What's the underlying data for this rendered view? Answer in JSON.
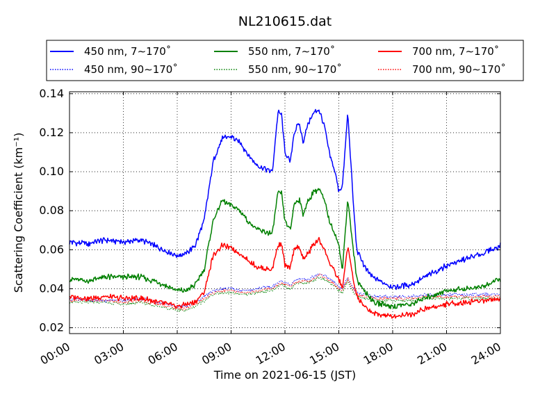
{
  "chart_data": {
    "type": "line",
    "title": "NL210615.dat",
    "xlabel": "Time on 2021-06-15 (JST)",
    "ylabel": "Scattering Coefficient (km⁻¹)",
    "xlim": [
      "00:00",
      "24:00"
    ],
    "ylim": [
      0.017,
      0.141
    ],
    "grid": true,
    "legend": "top, outside, 3 columns",
    "x_ticks": [
      "00:00",
      "03:00",
      "06:00",
      "09:00",
      "12:00",
      "15:00",
      "18:00",
      "21:00",
      "24:00"
    ],
    "y_ticks": [
      "0.02",
      "0.04",
      "0.06",
      "0.08",
      "0.10",
      "0.12",
      "0.14"
    ],
    "x_hours": [
      0,
      1,
      2,
      3,
      4,
      5,
      6,
      6.5,
      7,
      7.5,
      8,
      8.5,
      9,
      9.5,
      10,
      10.5,
      11,
      11.3,
      11.6,
      11.8,
      12.0,
      12.3,
      12.5,
      12.8,
      13.0,
      13.3,
      13.6,
      13.9,
      14.2,
      14.5,
      14.8,
      15.0,
      15.2,
      15.5,
      15.8,
      16.0,
      16.5,
      17,
      18,
      19,
      20,
      21,
      22,
      23,
      24
    ],
    "series": [
      {
        "name": "450 nm, 7∼170˚",
        "color": "#0000ff",
        "dash": "solid",
        "values": [
          0.064,
          0.063,
          0.065,
          0.064,
          0.065,
          0.061,
          0.057,
          0.058,
          0.062,
          0.075,
          0.105,
          0.117,
          0.118,
          0.115,
          0.108,
          0.103,
          0.101,
          0.1,
          0.13,
          0.13,
          0.11,
          0.105,
          0.12,
          0.125,
          0.115,
          0.125,
          0.13,
          0.132,
          0.123,
          0.108,
          0.1,
          0.09,
          0.092,
          0.13,
          0.085,
          0.06,
          0.05,
          0.045,
          0.041,
          0.042,
          0.047,
          0.052,
          0.055,
          0.058,
          0.062
        ]
      },
      {
        "name": "550 nm, 7∼170˚",
        "color": "#008000",
        "dash": "solid",
        "values": [
          0.045,
          0.044,
          0.046,
          0.046,
          0.046,
          0.043,
          0.039,
          0.039,
          0.042,
          0.05,
          0.075,
          0.085,
          0.083,
          0.08,
          0.074,
          0.07,
          0.069,
          0.068,
          0.089,
          0.089,
          0.075,
          0.07,
          0.083,
          0.086,
          0.078,
          0.085,
          0.09,
          0.091,
          0.085,
          0.074,
          0.068,
          0.062,
          0.05,
          0.086,
          0.06,
          0.045,
          0.038,
          0.033,
          0.031,
          0.032,
          0.036,
          0.039,
          0.04,
          0.041,
          0.045
        ]
      },
      {
        "name": "700 nm, 7∼170˚",
        "color": "#ff0000",
        "dash": "solid",
        "values": [
          0.036,
          0.035,
          0.036,
          0.035,
          0.035,
          0.033,
          0.031,
          0.032,
          0.033,
          0.038,
          0.057,
          0.062,
          0.061,
          0.058,
          0.054,
          0.051,
          0.05,
          0.05,
          0.062,
          0.063,
          0.052,
          0.05,
          0.06,
          0.062,
          0.055,
          0.058,
          0.063,
          0.065,
          0.06,
          0.053,
          0.048,
          0.045,
          0.04,
          0.062,
          0.045,
          0.036,
          0.03,
          0.027,
          0.026,
          0.027,
          0.03,
          0.032,
          0.033,
          0.034,
          0.035
        ]
      },
      {
        "name": "450 nm, 90∼170˚",
        "color": "#0000ff",
        "dash": "dotted",
        "values": [
          0.035,
          0.034,
          0.034,
          0.034,
          0.035,
          0.033,
          0.031,
          0.031,
          0.033,
          0.036,
          0.039,
          0.04,
          0.04,
          0.039,
          0.039,
          0.04,
          0.041,
          0.041,
          0.043,
          0.044,
          0.043,
          0.042,
          0.044,
          0.045,
          0.045,
          0.045,
          0.046,
          0.048,
          0.047,
          0.045,
          0.043,
          0.041,
          0.04,
          0.046,
          0.04,
          0.038,
          0.037,
          0.036,
          0.036,
          0.036,
          0.037,
          0.037,
          0.037,
          0.037,
          0.037
        ]
      },
      {
        "name": "550 nm, 90∼170˚",
        "color": "#008000",
        "dash": "dotted",
        "values": [
          0.033,
          0.033,
          0.033,
          0.032,
          0.033,
          0.031,
          0.029,
          0.029,
          0.031,
          0.034,
          0.037,
          0.038,
          0.038,
          0.037,
          0.037,
          0.038,
          0.039,
          0.039,
          0.041,
          0.042,
          0.041,
          0.04,
          0.042,
          0.043,
          0.043,
          0.043,
          0.044,
          0.046,
          0.045,
          0.043,
          0.041,
          0.039,
          0.038,
          0.044,
          0.038,
          0.036,
          0.035,
          0.034,
          0.034,
          0.034,
          0.035,
          0.035,
          0.035,
          0.035,
          0.035
        ]
      },
      {
        "name": "700 nm, 90∼170˚",
        "color": "#ff0000",
        "dash": "dotted",
        "values": [
          0.034,
          0.034,
          0.034,
          0.033,
          0.034,
          0.032,
          0.03,
          0.03,
          0.032,
          0.035,
          0.038,
          0.039,
          0.039,
          0.038,
          0.038,
          0.039,
          0.04,
          0.04,
          0.042,
          0.043,
          0.042,
          0.041,
          0.043,
          0.044,
          0.044,
          0.044,
          0.045,
          0.047,
          0.046,
          0.044,
          0.042,
          0.04,
          0.039,
          0.045,
          0.039,
          0.037,
          0.036,
          0.035,
          0.035,
          0.035,
          0.036,
          0.036,
          0.036,
          0.036,
          0.036
        ]
      }
    ]
  }
}
